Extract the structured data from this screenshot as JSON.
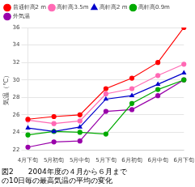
{
  "chart_data": {
    "type": "line",
    "title": "図2　　2004年度の４月から６月まで",
    "subtitle": "の10日毎の最高気温の平均の変化",
    "y_label": "気温（℃）",
    "categories": [
      "4月下旬",
      "5月初旬",
      "5月中旬",
      "5月下旬",
      "6月初旬",
      "6月中旬",
      "6月下旬"
    ],
    "series": [
      {
        "name": "普通軒高2 m",
        "color": "#ff0000",
        "marker": "circle",
        "values": [
          25.5,
          25.8,
          26.0,
          29.0,
          30.2,
          32.0,
          36.0
        ]
      },
      {
        "name": "高軒高3.5m",
        "color": "#ff69b4",
        "marker": "circle",
        "values": [
          25.4,
          25.0,
          25.3,
          28.4,
          29.0,
          30.5,
          31.8
        ]
      },
      {
        "name": "高軒高2 m",
        "color": "#0000cc",
        "marker": "triangle",
        "values": [
          24.5,
          24.1,
          24.6,
          27.8,
          28.2,
          29.5,
          30.8
        ]
      },
      {
        "name": "高軒高0.9m",
        "color": "#00aa00",
        "marker": "circle",
        "values": [
          23.7,
          24.1,
          24.0,
          23.8,
          27.3,
          28.9,
          30.0
        ]
      },
      {
        "name": "外気温",
        "color": "#9900aa",
        "marker": "circle",
        "values": [
          22.3,
          22.9,
          23.0,
          26.4,
          26.6,
          28.2,
          30.0
        ]
      }
    ],
    "ylim": [
      22,
      36
    ],
    "yticks": [
      22,
      24,
      26,
      28,
      30,
      32,
      34,
      36
    ],
    "grid": true,
    "legend": "upper left"
  }
}
